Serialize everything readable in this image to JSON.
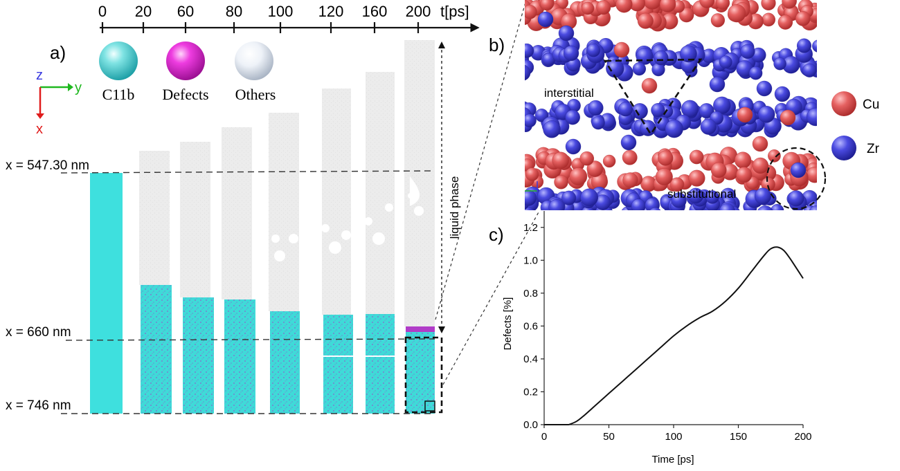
{
  "timeline": {
    "ticks": [
      "0",
      "20",
      "60",
      "80",
      "100",
      "120",
      "160",
      "200"
    ],
    "unit": "t[ps]"
  },
  "panel_a": {
    "label": "a)",
    "legend": [
      {
        "name": "C11b",
        "color": "#3fd3d3",
        "icon": "sphere-cyan-icon"
      },
      {
        "name": "Defects",
        "color": "#e020c8",
        "icon": "sphere-magenta-icon"
      },
      {
        "name": "Others",
        "color": "#e6ecf4",
        "icon": "sphere-white-icon"
      }
    ],
    "axes": {
      "z": "z",
      "y": "y",
      "x": "x"
    },
    "positions": [
      "x = 547.30 nm",
      "x = 660 nm",
      "x = 746 nm"
    ],
    "liquid_label": "liquid phase",
    "colors": {
      "solid": "#3fe0de",
      "liquid": "#ebebeb",
      "defect": "#b03cc8"
    }
  },
  "panel_b": {
    "label": "b)",
    "annotations": [
      "interstitial",
      "substitutional"
    ],
    "legend": [
      {
        "name": "Cu",
        "color": "#e05050",
        "icon": "atom-cu-icon"
      },
      {
        "name": "Zr",
        "color": "#3a3ad8",
        "icon": "atom-zr-icon"
      }
    ]
  },
  "panel_c": {
    "label": "c)"
  },
  "chart_data": {
    "type": "line",
    "title": "",
    "xlabel": "Time [ps]",
    "ylabel": "Defects [%]",
    "xlim": [
      0,
      200
    ],
    "ylim": [
      0,
      1.3
    ],
    "xticks": [
      0,
      50,
      100,
      150,
      200
    ],
    "yticks": [
      0.0,
      0.2,
      0.4,
      0.6,
      0.8,
      1.0,
      1.2
    ],
    "ytick_labels": [
      "0.0",
      "0.2",
      "0.4",
      "0.6",
      "0.8",
      "1.0",
      "1.2"
    ],
    "grid": false,
    "series": [
      {
        "x": [
          0,
          10,
          18,
          20,
          25,
          30,
          40,
          50,
          60,
          70,
          80,
          90,
          100,
          110,
          120,
          130,
          140,
          150,
          160,
          170,
          175,
          180,
          185,
          190,
          195,
          200
        ],
        "values": [
          0,
          0,
          0,
          0.003,
          0.02,
          0.05,
          0.12,
          0.19,
          0.26,
          0.33,
          0.4,
          0.47,
          0.54,
          0.6,
          0.65,
          0.69,
          0.75,
          0.83,
          0.93,
          1.03,
          1.07,
          1.08,
          1.06,
          1.01,
          0.95,
          0.89
        ]
      }
    ]
  }
}
